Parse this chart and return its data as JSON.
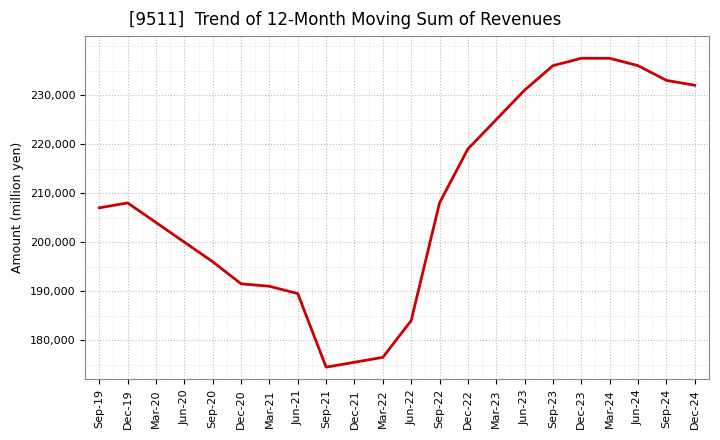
{
  "title": "[9511]  Trend of 12-Month Moving Sum of Revenues",
  "ylabel": "Amount (million yen)",
  "background_color": "#ffffff",
  "plot_bg_color": "#ffffff",
  "grid_color": "#bbbbbb",
  "line_color": "#cc0000",
  "line_width": 2.0,
  "x_labels": [
    "Sep-19",
    "Dec-19",
    "Mar-20",
    "Jun-20",
    "Sep-20",
    "Dec-20",
    "Mar-21",
    "Jun-21",
    "Sep-21",
    "Dec-21",
    "Mar-22",
    "Jun-22",
    "Sep-22",
    "Dec-22",
    "Mar-23",
    "Jun-23",
    "Sep-23",
    "Dec-23",
    "Mar-24",
    "Jun-24",
    "Sep-24",
    "Dec-24"
  ],
  "values": [
    207000,
    208000,
    204000,
    200000,
    196000,
    191500,
    191000,
    189500,
    174500,
    175500,
    176500,
    184000,
    208000,
    219000,
    225000,
    231000,
    236000,
    237500,
    237500,
    236000,
    233000,
    232000
  ],
  "ylim": [
    172000,
    242000
  ],
  "yticks": [
    180000,
    190000,
    200000,
    210000,
    220000,
    230000
  ],
  "title_fontsize": 12,
  "tick_fontsize": 8,
  "ylabel_fontsize": 9
}
